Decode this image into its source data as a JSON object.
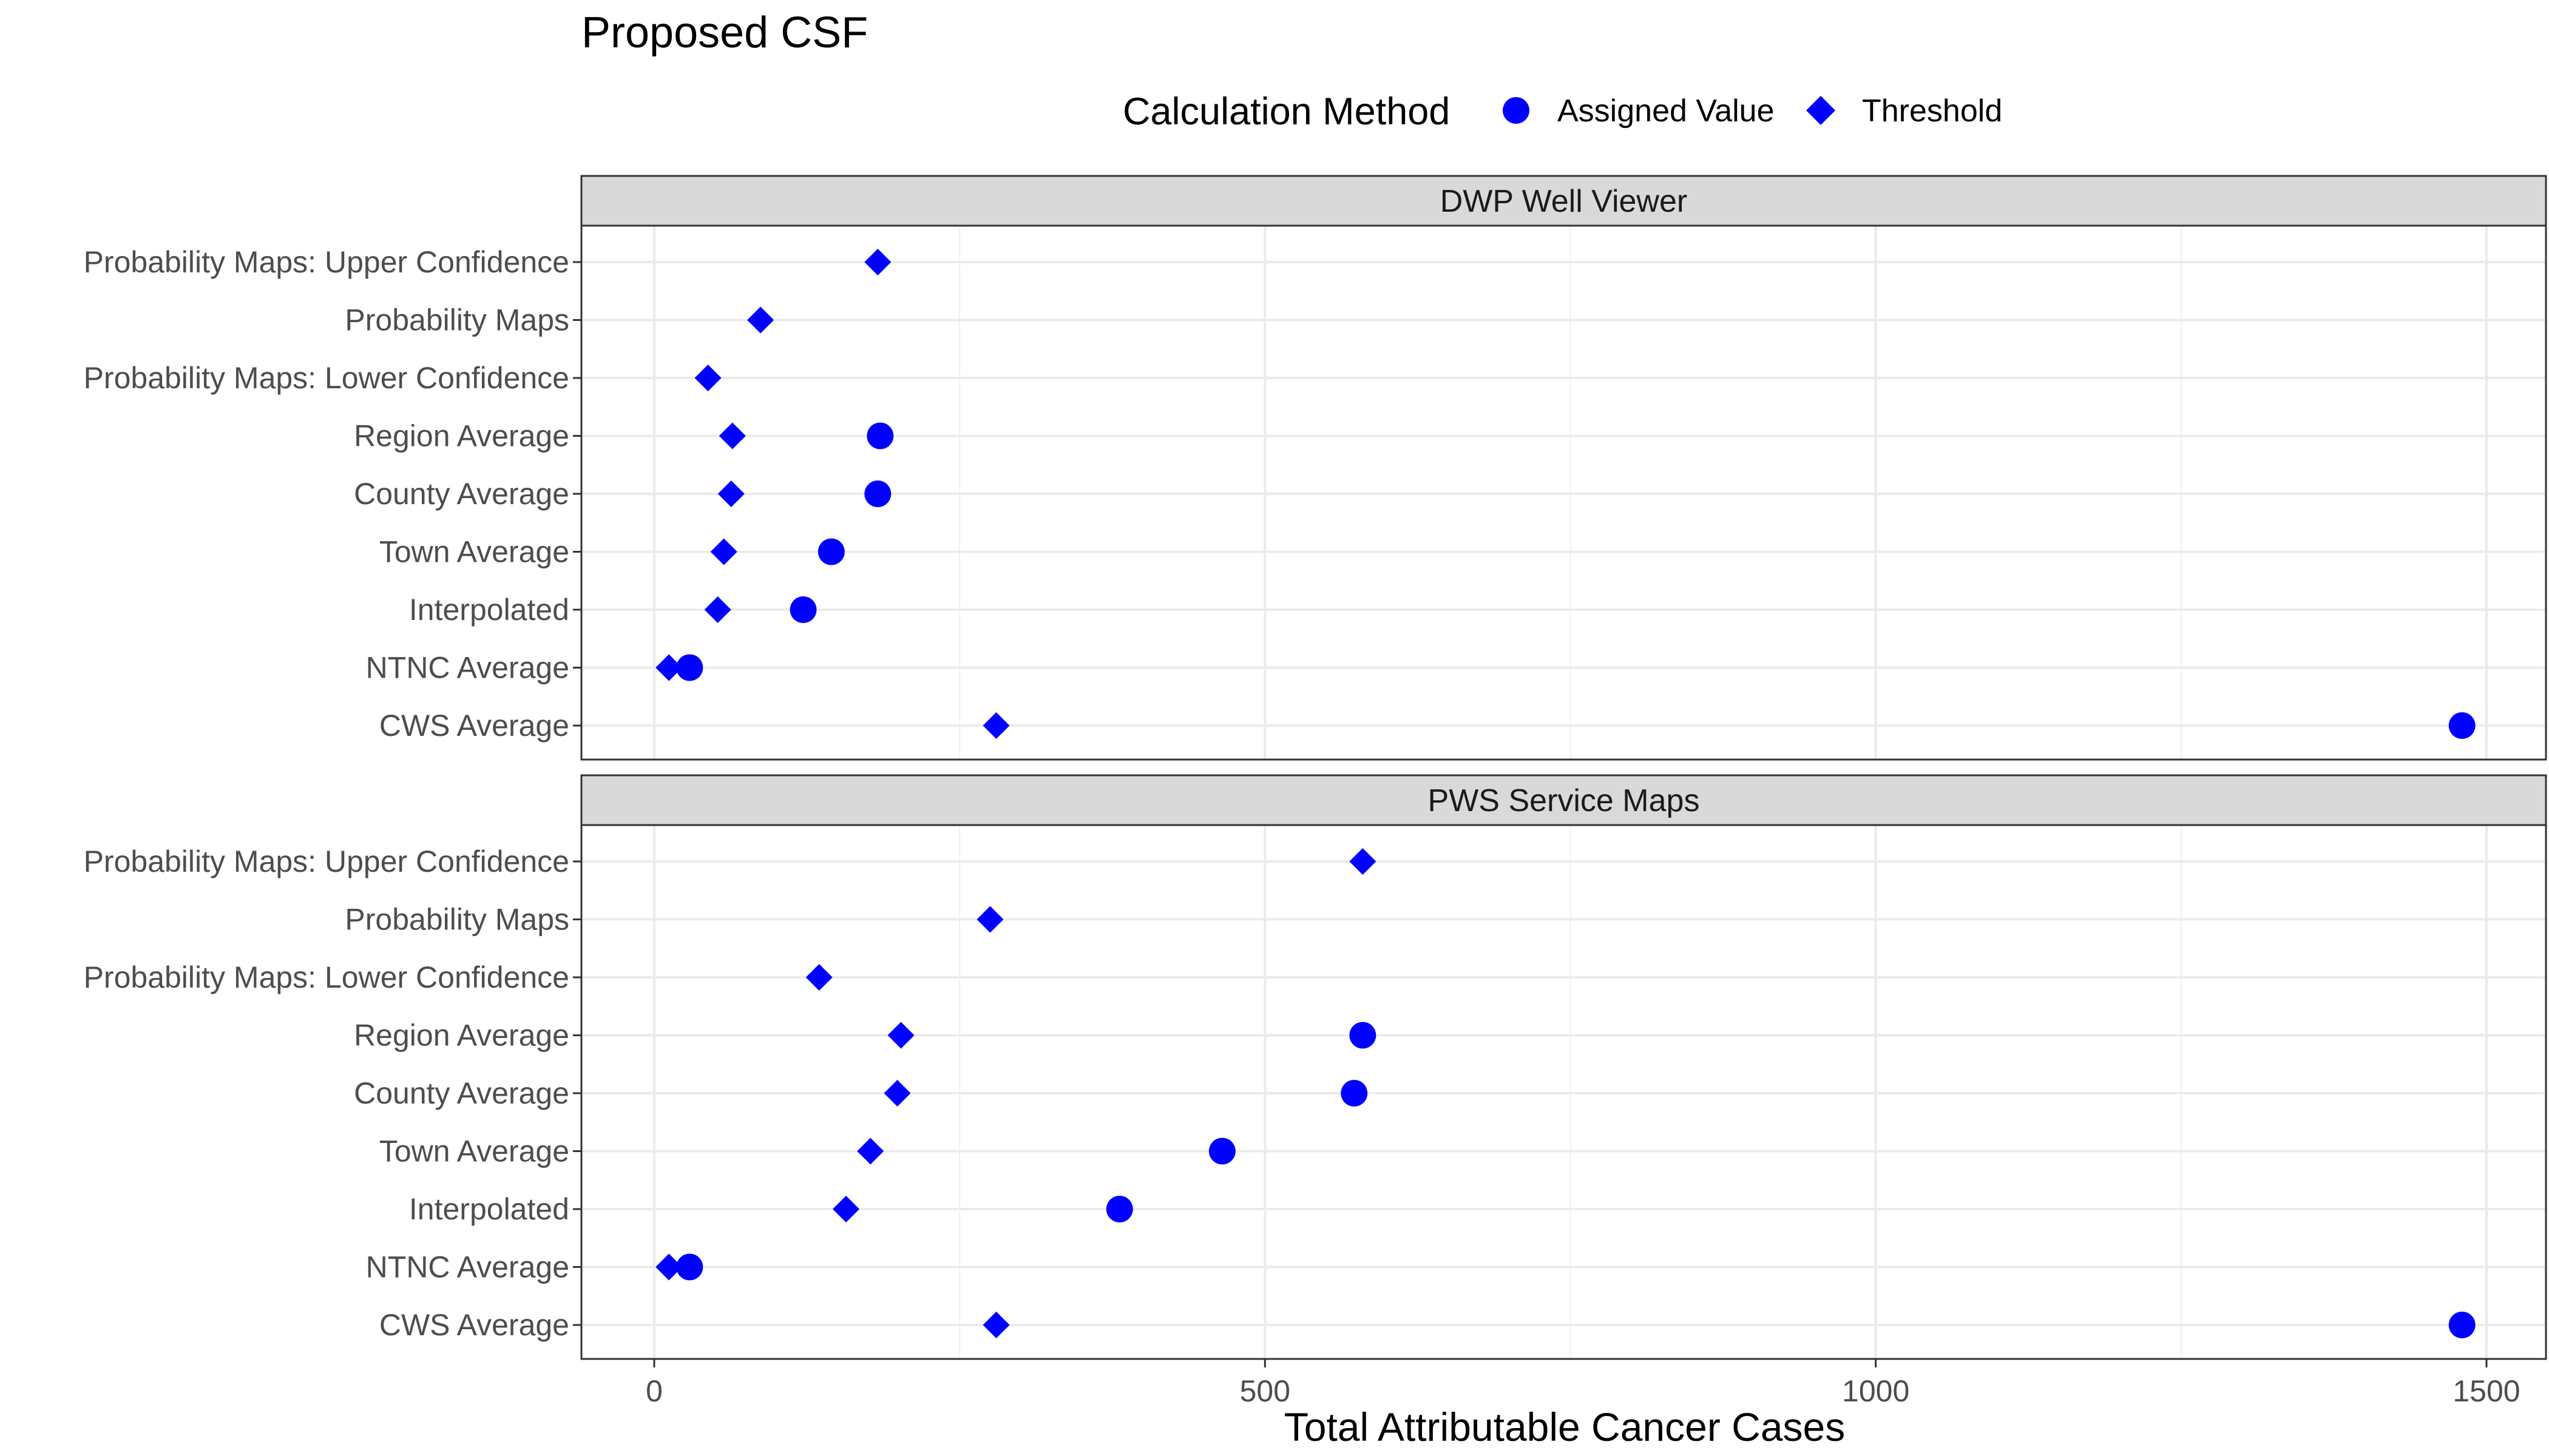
{
  "chart_data": {
    "type": "scatter",
    "title": "Proposed CSF",
    "xlabel": "Total Attributable Cancer Cases",
    "ylabel": "",
    "xlim": [
      -60,
      1555
    ],
    "xticks": [
      0,
      500,
      1000,
      1500
    ],
    "grid": true,
    "legend": {
      "title": "Calculation Method",
      "position": "top",
      "entries": [
        {
          "label": "Assigned Value",
          "shape": "circle"
        },
        {
          "label": "Threshold",
          "shape": "diamond"
        }
      ]
    },
    "marker_color": "#0000FF",
    "categories": [
      "Probability Maps: Upper Confidence",
      "Probability Maps",
      "Probability Maps: Lower Confidence",
      "Region Average",
      "County Average",
      "Town Average",
      "Interpolated",
      "NTNC Average",
      "CWS Average"
    ],
    "panels": [
      {
        "strip": "DWP Well Viewer",
        "series": [
          {
            "name": "Assigned Value",
            "values": [
              null,
              null,
              null,
              185,
              183,
              145,
              122,
              29,
              1480
            ]
          },
          {
            "name": "Threshold",
            "values": [
              183,
              87,
              44,
              64,
              63,
              57,
              52,
              12,
              280
            ]
          }
        ]
      },
      {
        "strip": "PWS Service Maps",
        "series": [
          {
            "name": "Assigned Value",
            "values": [
              null,
              null,
              null,
              580,
              573,
              465,
              381,
              29,
              1480
            ]
          },
          {
            "name": "Threshold",
            "values": [
              580,
              275,
              135,
              202,
              199,
              177,
              157,
              12,
              280
            ]
          }
        ]
      }
    ]
  }
}
